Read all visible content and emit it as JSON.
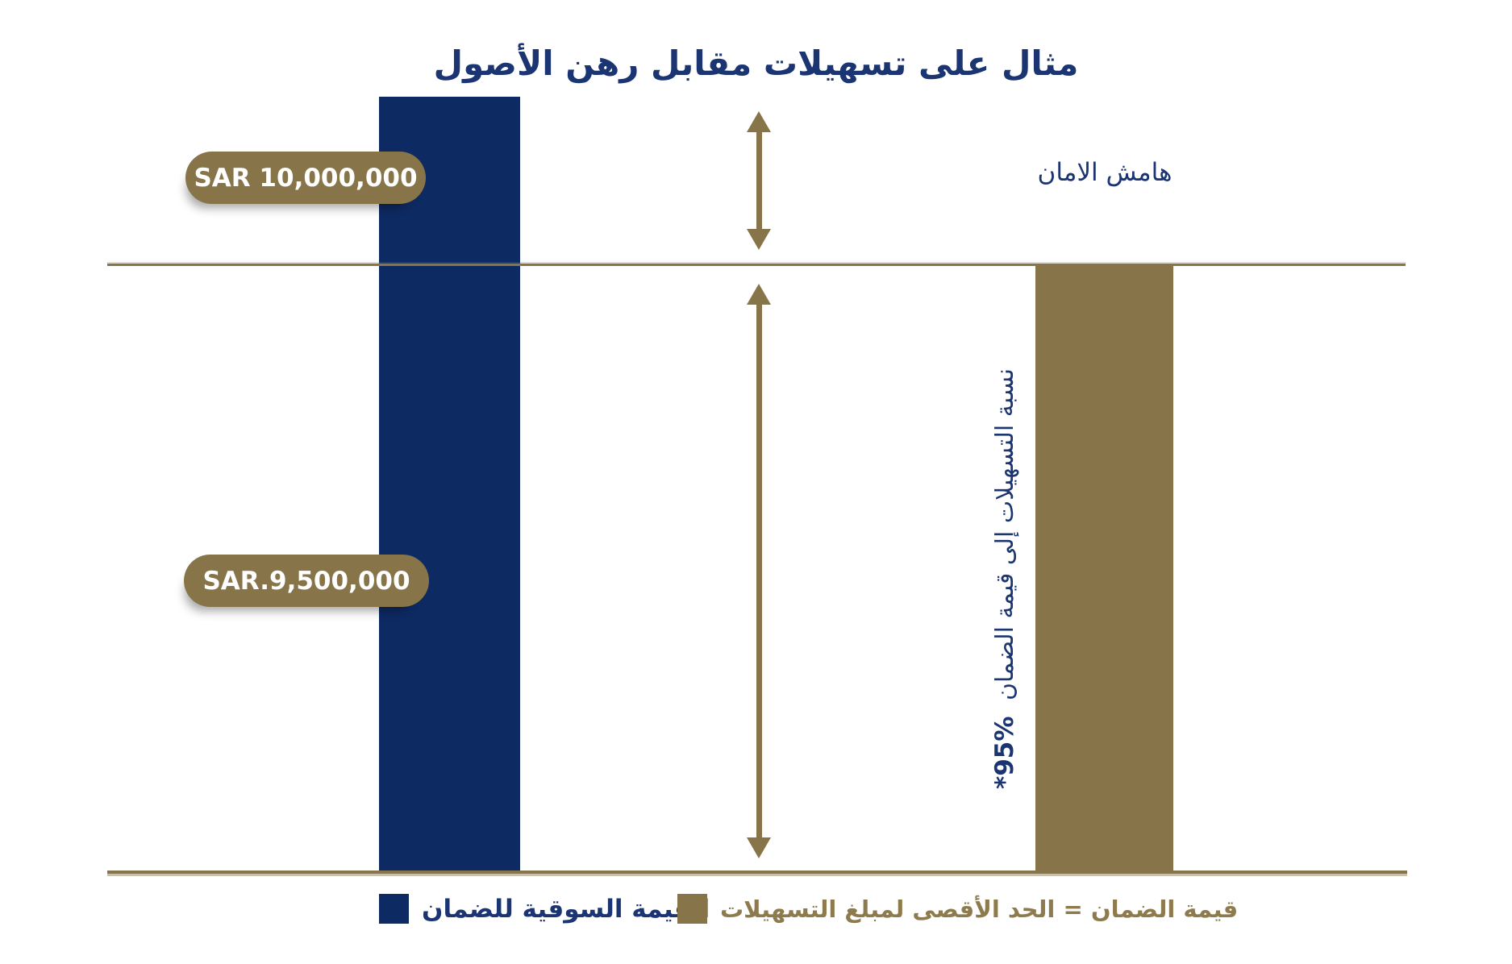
{
  "title": "مثال على تسهيلات مقابل رهن الأصول",
  "chart_data": {
    "type": "bar",
    "title": "مثال على تسهيلات مقابل رهن الأصول",
    "categories": [
      "القيمة السوقية للضمان",
      "قيمة الضمان = الحد الأقصى لمبلغ التسهيلات"
    ],
    "values": [
      10000000,
      9500000
    ],
    "value_labels": [
      "SAR 10,000,000",
      "SAR.9,500,000"
    ],
    "currency": "SAR",
    "reference_line_value": 9500000,
    "ratio_facilities_to_collateral_pct": 95,
    "annotations": [
      "هامش الامان",
      "نسبة التسهيلات إلى قيمة الضمان *95%"
    ],
    "legend_position": "bottom",
    "grid": false,
    "bar_colors": [
      "#0E2A63",
      "#877549"
    ]
  },
  "pills": {
    "collateral_market_value": "SAR 10,000,000",
    "facilities_max_value": "SAR.9,500,000"
  },
  "annotations": {
    "safety_margin": "هامش الامان",
    "ratio_text": "نسبة التسهيلات إلى قيمة الضمان",
    "ratio_value": "*95%"
  },
  "legend": {
    "market_value_label": "القيمة السوقية للضمان",
    "collateral_max_label": "قيمة الضمان = الحد الأقصى لمبلغ التسهيلات"
  },
  "colors": {
    "navy": "#0E2A63",
    "navy_text": "#1B3573",
    "gold": "#877549",
    "gold_text": "#8D7A4D",
    "background": "#FFFFFF"
  }
}
